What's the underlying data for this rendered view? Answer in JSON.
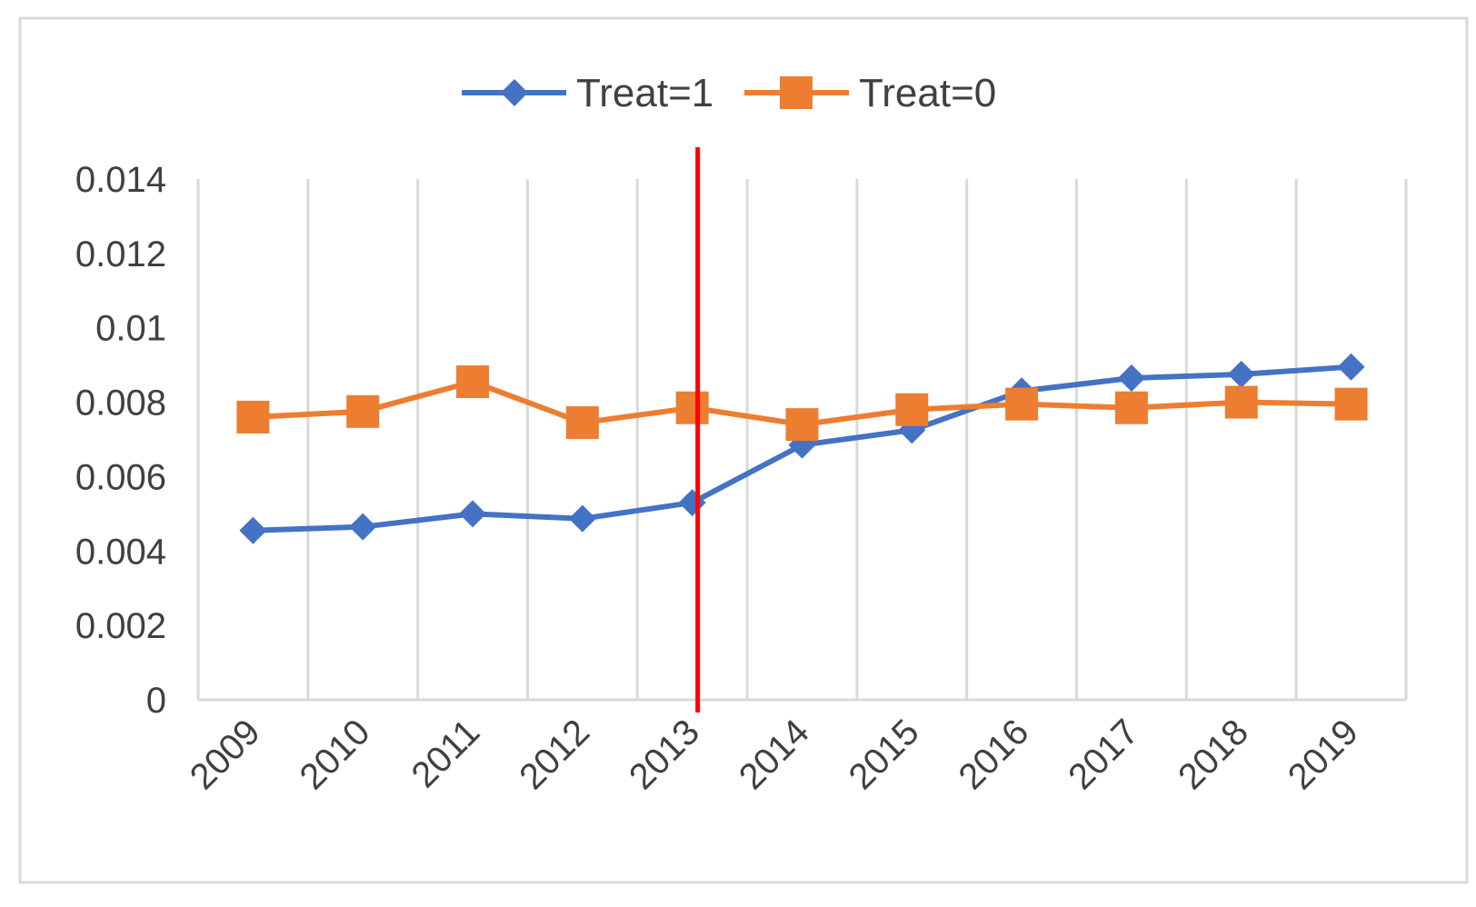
{
  "chart_data": {
    "type": "line",
    "title": "",
    "xlabel": "",
    "ylabel": "",
    "categories": [
      "2009",
      "2010",
      "2011",
      "2012",
      "2013",
      "2014",
      "2015",
      "2016",
      "2017",
      "2018",
      "2019"
    ],
    "series": [
      {
        "name": "Treat=1",
        "color": "#4472C4",
        "marker": "diamond",
        "values": [
          0.00455,
          0.00465,
          0.005,
          0.00487,
          0.0053,
          0.00685,
          0.00725,
          0.0083,
          0.00865,
          0.00875,
          0.00895
        ]
      },
      {
        "name": "Treat=0",
        "color": "#ED7D31",
        "marker": "square",
        "values": [
          0.0076,
          0.00775,
          0.00855,
          0.00745,
          0.00785,
          0.0074,
          0.0078,
          0.00795,
          0.00785,
          0.008,
          0.00795
        ]
      }
    ],
    "ylim": [
      0,
      0.014
    ],
    "yticks": [
      "0",
      "0.002",
      "0.004",
      "0.006",
      "0.008",
      "0.01",
      "0.012",
      "0.014"
    ],
    "ytick_values": [
      0,
      0.002,
      0.004,
      0.006,
      0.008,
      0.01,
      0.012,
      0.014
    ],
    "vertical_gridlines": true,
    "legend_position": "top-center",
    "reference_line": {
      "category": "2013",
      "color": "#FF0000"
    }
  }
}
